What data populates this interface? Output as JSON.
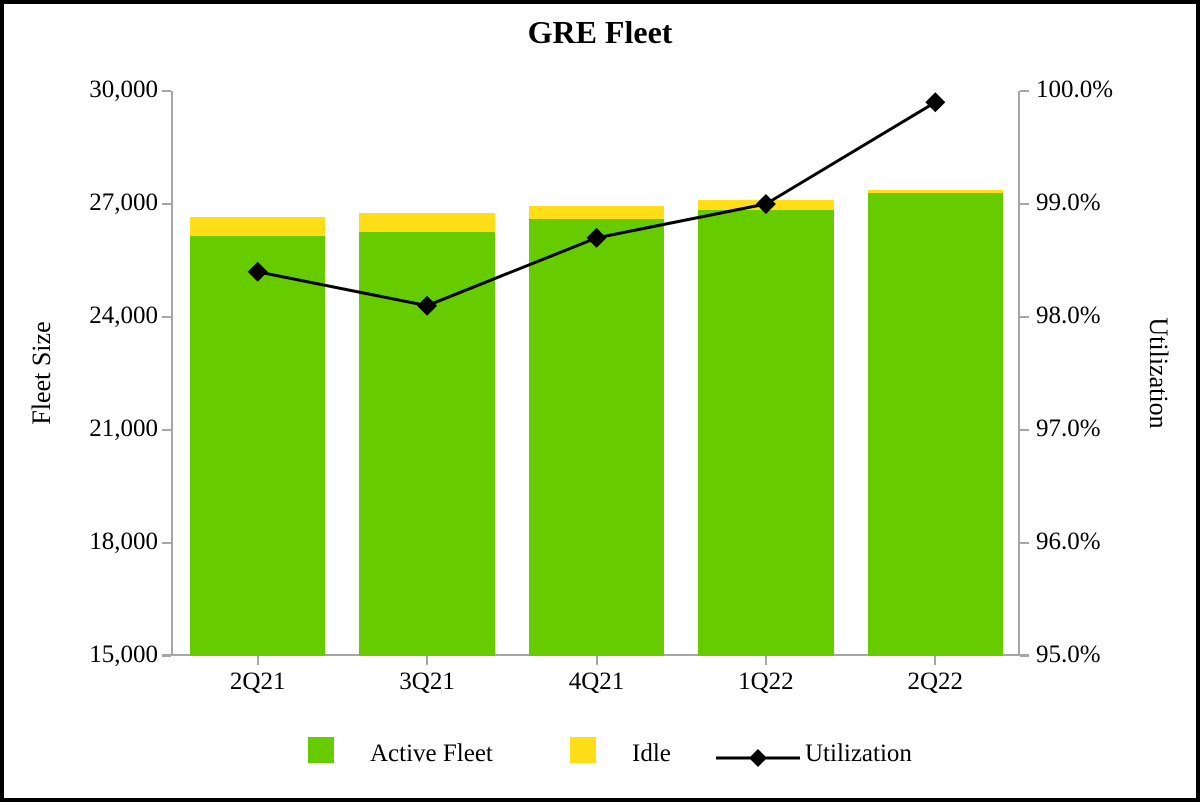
{
  "title": "GRE Fleet",
  "chart_data": {
    "type": "bar",
    "subtype": "stacked-bars-with-line-combo",
    "title": "GRE Fleet",
    "categories": [
      "2Q21",
      "3Q21",
      "4Q21",
      "1Q22",
      "2Q22"
    ],
    "series": [
      {
        "name": "Active Fleet",
        "type": "bar",
        "stacked": true,
        "color": "#66cc00",
        "values": [
          26150,
          26250,
          26600,
          26850,
          27300
        ]
      },
      {
        "name": "Idle",
        "type": "bar",
        "stacked": true,
        "color": "#ffde17",
        "values": [
          500,
          500,
          350,
          250,
          75
        ]
      },
      {
        "name": "Utilization",
        "type": "line",
        "axis": "right",
        "color": "#000000",
        "marker": "diamond",
        "values": [
          98.4,
          98.1,
          98.7,
          99.0,
          99.9
        ]
      }
    ],
    "stacked_totals": [
      26650,
      26750,
      26950,
      27100,
      27375
    ],
    "y_left": {
      "label": "Fleet Size",
      "min": 15000,
      "max": 30000,
      "step": 3000,
      "tick_labels": [
        "15,000",
        "18,000",
        "21,000",
        "24,000",
        "27,000",
        "30,000"
      ]
    },
    "y_right": {
      "label": "Utilization",
      "min": 95.0,
      "max": 100.0,
      "step": 1.0,
      "tick_labels": [
        "95.0%",
        "96.0%",
        "97.0%",
        "98.0%",
        "99.0%",
        "100.0%"
      ]
    },
    "grid": "off",
    "legend_position": "bottom",
    "axis_color": "#a6a6a6"
  }
}
